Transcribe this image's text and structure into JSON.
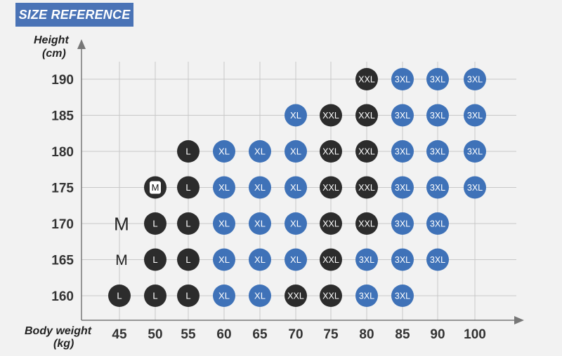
{
  "header": {
    "title": "SIZE REFERENCE"
  },
  "chart_data": {
    "type": "table",
    "title": "SIZE REFERENCE",
    "xlabel": [
      "Body weight",
      "(kg)"
    ],
    "ylabel": [
      "Height",
      "(cm)"
    ],
    "x_ticks": [
      45,
      50,
      55,
      60,
      65,
      70,
      75,
      80,
      85,
      90,
      100
    ],
    "y_ticks": [
      190,
      185,
      180,
      175,
      170,
      165,
      160
    ],
    "grid": true,
    "colors": {
      "XL": "#3f72b8",
      "3XL": "#3f72b8",
      "L": "#2c2c2c",
      "XXL": "#2c2c2c",
      "M": "#2c2c2c"
    },
    "points": [
      {
        "weight": 80,
        "height": 190,
        "size": "XXL"
      },
      {
        "weight": 85,
        "height": 190,
        "size": "3XL"
      },
      {
        "weight": 90,
        "height": 190,
        "size": "3XL"
      },
      {
        "weight": 100,
        "height": 190,
        "size": "3XL"
      },
      {
        "weight": 70,
        "height": 185,
        "size": "XL"
      },
      {
        "weight": 75,
        "height": 185,
        "size": "XXL"
      },
      {
        "weight": 80,
        "height": 185,
        "size": "XXL"
      },
      {
        "weight": 85,
        "height": 185,
        "size": "3XL"
      },
      {
        "weight": 90,
        "height": 185,
        "size": "3XL"
      },
      {
        "weight": 100,
        "height": 185,
        "size": "3XL"
      },
      {
        "weight": 55,
        "height": 180,
        "size": "L"
      },
      {
        "weight": 60,
        "height": 180,
        "size": "XL"
      },
      {
        "weight": 65,
        "height": 180,
        "size": "XL"
      },
      {
        "weight": 70,
        "height": 180,
        "size": "XL"
      },
      {
        "weight": 75,
        "height": 180,
        "size": "XXL"
      },
      {
        "weight": 80,
        "height": 180,
        "size": "XXL"
      },
      {
        "weight": 85,
        "height": 180,
        "size": "3XL"
      },
      {
        "weight": 90,
        "height": 180,
        "size": "3XL"
      },
      {
        "weight": 100,
        "height": 180,
        "size": "3XL"
      },
      {
        "weight": 50,
        "height": 175,
        "size": "M"
      },
      {
        "weight": 55,
        "height": 175,
        "size": "L"
      },
      {
        "weight": 60,
        "height": 175,
        "size": "XL"
      },
      {
        "weight": 65,
        "height": 175,
        "size": "XL"
      },
      {
        "weight": 70,
        "height": 175,
        "size": "XL"
      },
      {
        "weight": 75,
        "height": 175,
        "size": "XXL"
      },
      {
        "weight": 80,
        "height": 175,
        "size": "XXL"
      },
      {
        "weight": 85,
        "height": 175,
        "size": "3XL"
      },
      {
        "weight": 90,
        "height": 175,
        "size": "3XL"
      },
      {
        "weight": 100,
        "height": 175,
        "size": "3XL"
      },
      {
        "weight": 45,
        "height": 170,
        "size": "M",
        "plain": true
      },
      {
        "weight": 50,
        "height": 170,
        "size": "L"
      },
      {
        "weight": 55,
        "height": 170,
        "size": "L"
      },
      {
        "weight": 60,
        "height": 170,
        "size": "XL"
      },
      {
        "weight": 65,
        "height": 170,
        "size": "XL"
      },
      {
        "weight": 70,
        "height": 170,
        "size": "XL"
      },
      {
        "weight": 75,
        "height": 170,
        "size": "XXL"
      },
      {
        "weight": 80,
        "height": 170,
        "size": "XXL"
      },
      {
        "weight": 85,
        "height": 170,
        "size": "3XL"
      },
      {
        "weight": 90,
        "height": 170,
        "size": "3XL"
      },
      {
        "weight": 45,
        "height": 165,
        "size": "M",
        "plain": true
      },
      {
        "weight": 50,
        "height": 165,
        "size": "L"
      },
      {
        "weight": 55,
        "height": 165,
        "size": "L"
      },
      {
        "weight": 60,
        "height": 165,
        "size": "XL"
      },
      {
        "weight": 65,
        "height": 165,
        "size": "XL"
      },
      {
        "weight": 70,
        "height": 165,
        "size": "XL"
      },
      {
        "weight": 75,
        "height": 165,
        "size": "XXL"
      },
      {
        "weight": 80,
        "height": 165,
        "size": "3XL"
      },
      {
        "weight": 85,
        "height": 165,
        "size": "3XL"
      },
      {
        "weight": 90,
        "height": 165,
        "size": "3XL"
      },
      {
        "weight": 45,
        "height": 160,
        "size": "L"
      },
      {
        "weight": 50,
        "height": 160,
        "size": "L"
      },
      {
        "weight": 55,
        "height": 160,
        "size": "L"
      },
      {
        "weight": 60,
        "height": 160,
        "size": "XL"
      },
      {
        "weight": 65,
        "height": 160,
        "size": "XL"
      },
      {
        "weight": 70,
        "height": 160,
        "size": "XXL"
      },
      {
        "weight": 75,
        "height": 160,
        "size": "XXL"
      },
      {
        "weight": 80,
        "height": 160,
        "size": "3XL"
      },
      {
        "weight": 85,
        "height": 160,
        "size": "3XL"
      }
    ]
  }
}
